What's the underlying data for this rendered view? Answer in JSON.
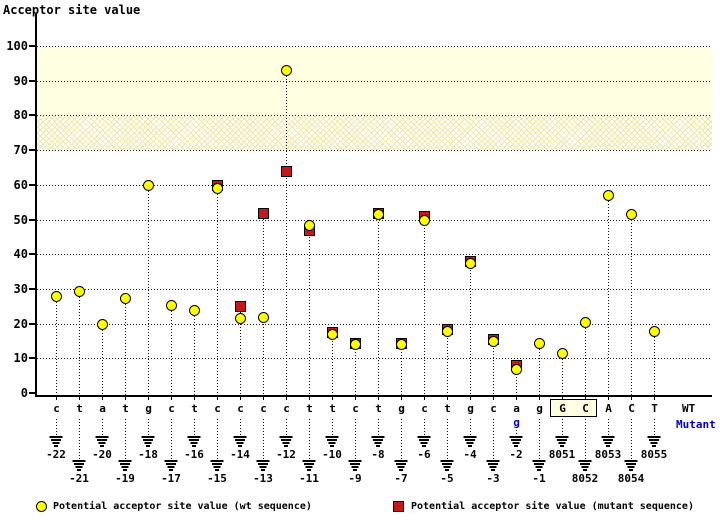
{
  "title": "Acceptor site value",
  "chart_data": {
    "type": "scatter",
    "title": "Acceptor site value",
    "ylabel": "Acceptor site value",
    "ylim": [
      0,
      100
    ],
    "yticks": [
      0,
      10,
      20,
      30,
      40,
      50,
      60,
      70,
      80,
      90,
      100
    ],
    "grid": "dotted-horizontal",
    "threshold_bands": [
      {
        "range": [
          80,
          100
        ],
        "style": "solid",
        "color": "#FFFFE1"
      },
      {
        "range": [
          70,
          80
        ],
        "style": "crosshatch",
        "color": "#EFE9A6"
      }
    ],
    "series": [
      {
        "name": "wt",
        "marker": "circle",
        "color": "#FFFF00"
      },
      {
        "name": "mutant",
        "marker": "square",
        "color": "#C41919"
      }
    ],
    "points": [
      {
        "base": "c",
        "position": "-22",
        "wt": 28,
        "mutant": null,
        "box": null
      },
      {
        "base": "t",
        "position": "-21",
        "wt": 29.5,
        "mutant": null,
        "box": null
      },
      {
        "base": "a",
        "position": "-20",
        "wt": 20,
        "mutant": null,
        "box": null
      },
      {
        "base": "t",
        "position": "-19",
        "wt": 27.5,
        "mutant": null,
        "box": null
      },
      {
        "base": "g",
        "position": "-18",
        "wt": 60,
        "mutant": null,
        "box": null
      },
      {
        "base": "c",
        "position": "-17",
        "wt": 25.5,
        "mutant": null,
        "box": null
      },
      {
        "base": "t",
        "position": "-16",
        "wt": 24,
        "mutant": null,
        "box": null
      },
      {
        "base": "c",
        "position": "-15",
        "wt": 59,
        "mutant": 60,
        "box": null
      },
      {
        "base": "c",
        "position": "-14",
        "wt": 21.5,
        "mutant": 25,
        "box": null
      },
      {
        "base": "c",
        "position": "-13",
        "wt": 22,
        "mutant": 52,
        "box": null
      },
      {
        "base": "c",
        "position": "-12",
        "wt": 93,
        "mutant": 64,
        "box": "yellow"
      },
      {
        "base": "t",
        "position": "-11",
        "wt": 48.5,
        "mutant": 47,
        "box": "yellow"
      },
      {
        "base": "t",
        "position": "-10",
        "wt": 17,
        "mutant": 17.5,
        "box": "yellow"
      },
      {
        "base": "c",
        "position": "-9",
        "wt": 14,
        "mutant": 14.5,
        "box": "yellow"
      },
      {
        "base": "t",
        "position": "-8",
        "wt": 51.5,
        "mutant": 52,
        "box": "yellow"
      },
      {
        "base": "g",
        "position": "-7",
        "wt": 14,
        "mutant": 14.5,
        "box": "yellow"
      },
      {
        "base": "c",
        "position": "-6",
        "wt": 50,
        "mutant": 51,
        "box": "yellow"
      },
      {
        "base": "t",
        "position": "-5",
        "wt": 18,
        "mutant": 18.5,
        "box": "yellow"
      },
      {
        "base": "g",
        "position": "-4",
        "wt": 37.5,
        "mutant": 38,
        "box": "yellow"
      },
      {
        "base": "c",
        "position": "-3",
        "wt": 15,
        "mutant": 15.5,
        "box": "yellow"
      },
      {
        "base": "a",
        "position": "-2",
        "wt": 7,
        "mutant": 8,
        "box": "yellow",
        "mutant_base": "g"
      },
      {
        "base": "g",
        "position": "-1",
        "wt": 14.5,
        "mutant": null,
        "box": "yellow"
      },
      {
        "base": "G",
        "position": "8051",
        "wt": 11.5,
        "mutant": null,
        "box": "cream"
      },
      {
        "base": "C",
        "position": "8052",
        "wt": 20.5,
        "mutant": null,
        "box": "cream"
      },
      {
        "base": "A",
        "position": "8053",
        "wt": 57,
        "mutant": null,
        "box": null
      },
      {
        "base": "C",
        "position": "8054",
        "wt": 51.5,
        "mutant": null,
        "box": null
      },
      {
        "base": "T",
        "position": "8055",
        "wt": 18,
        "mutant": null,
        "box": null
      }
    ],
    "row_labels": {
      "wt": "WT",
      "mutant": "Mutant"
    },
    "legend": [
      {
        "label": "Potential acceptor site value (wt sequence)",
        "marker": "circle",
        "color": "#FFFF00"
      },
      {
        "label": "Potential acceptor site value (mutant sequence)",
        "marker": "square",
        "color": "#C41919"
      }
    ],
    "legend_position": "bottom"
  },
  "colors": {
    "wt_marker": "#FFFF00",
    "mutant_marker": "#C41919",
    "mutant_text": "#0000CC",
    "highlight_box": "#FFFF00",
    "exon_box": "#FFFFE1",
    "band_solid": "#FFFFE1"
  }
}
